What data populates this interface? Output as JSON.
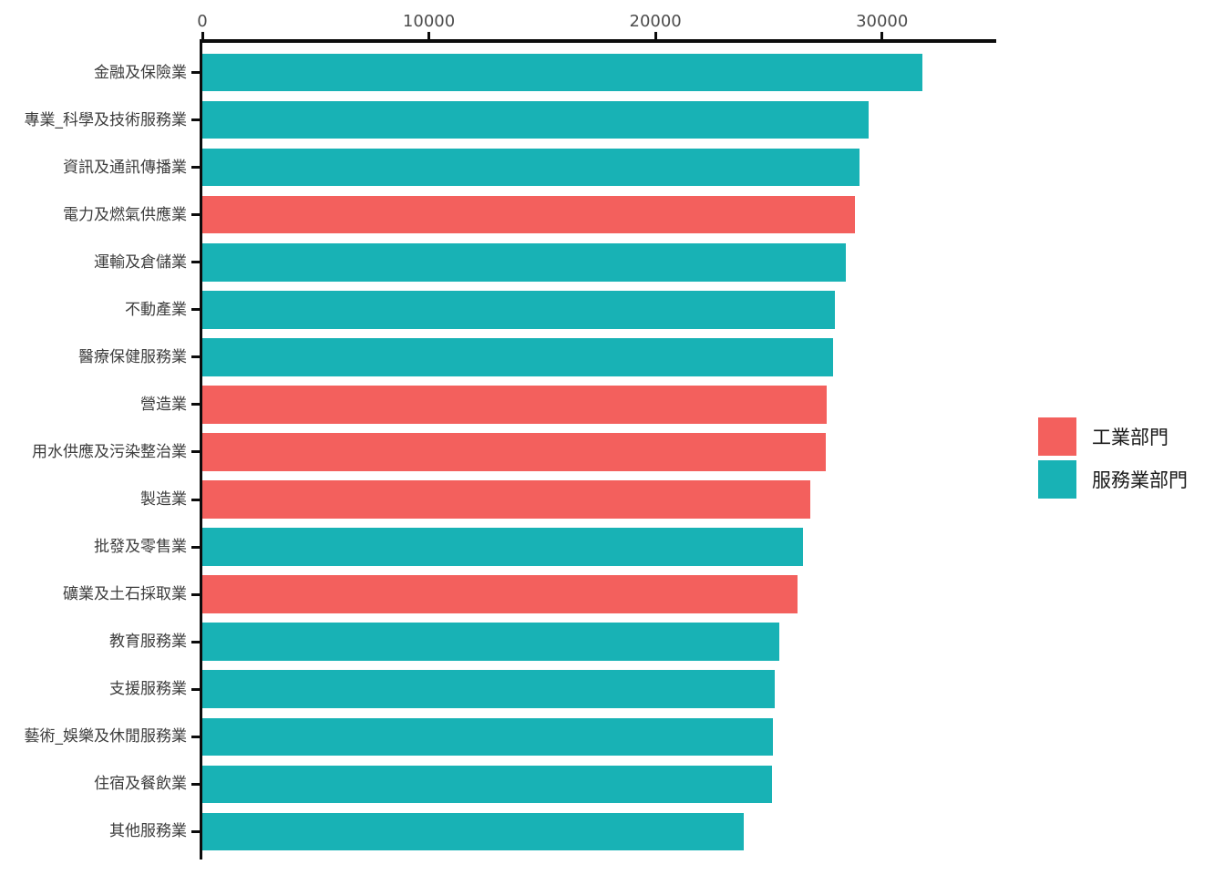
{
  "chart_data": {
    "type": "bar",
    "orientation": "horizontal",
    "title": "",
    "xlabel": "",
    "ylabel": "",
    "xlim": [
      0,
      35000
    ],
    "x_ticks": [
      0,
      10000,
      20000,
      30000
    ],
    "x_tick_labels": [
      "0",
      "10000",
      "20000",
      "30000"
    ],
    "grid": false,
    "legend_position": "right",
    "legend": [
      {
        "label": "工業部門",
        "color": "#F3605D"
      },
      {
        "label": "服務業部門",
        "color": "#18B2B5"
      }
    ],
    "bars": [
      {
        "category": "金融及保險業",
        "value": 31800,
        "group": "服務業部門"
      },
      {
        "category": "專業_科學及技術服務業",
        "value": 29400,
        "group": "服務業部門"
      },
      {
        "category": "資訊及通訊傳播業",
        "value": 29000,
        "group": "服務業部門"
      },
      {
        "category": "電力及燃氣供應業",
        "value": 28800,
        "group": "工業部門"
      },
      {
        "category": "運輸及倉儲業",
        "value": 28400,
        "group": "服務業部門"
      },
      {
        "category": "不動產業",
        "value": 27900,
        "group": "服務業部門"
      },
      {
        "category": "醫療保健服務業",
        "value": 27850,
        "group": "服務業部門"
      },
      {
        "category": "營造業",
        "value": 27550,
        "group": "工業部門"
      },
      {
        "category": "用水供應及污染整治業",
        "value": 27500,
        "group": "工業部門"
      },
      {
        "category": "製造業",
        "value": 26850,
        "group": "工業部門"
      },
      {
        "category": "批發及零售業",
        "value": 26500,
        "group": "服務業部門"
      },
      {
        "category": "礦業及土石採取業",
        "value": 26250,
        "group": "工業部門"
      },
      {
        "category": "教育服務業",
        "value": 25450,
        "group": "服務業部門"
      },
      {
        "category": "支援服務業",
        "value": 25270,
        "group": "服務業部門"
      },
      {
        "category": "藝術_娛樂及休閒服務業",
        "value": 25200,
        "group": "服務業部門"
      },
      {
        "category": "住宿及餐飲業",
        "value": 25150,
        "group": "服務業部門"
      },
      {
        "category": "其他服務業",
        "value": 23900,
        "group": "服務業部門"
      }
    ],
    "colors": {
      "industry_red": "#F3605D",
      "service_teal": "#18B2B5",
      "axis_line": "#0c0c0c",
      "tick_label": "#4d4d4d",
      "category_label": "#3d3d3d",
      "legend_label": "#1a1a1a",
      "background": "#ffffff"
    }
  }
}
